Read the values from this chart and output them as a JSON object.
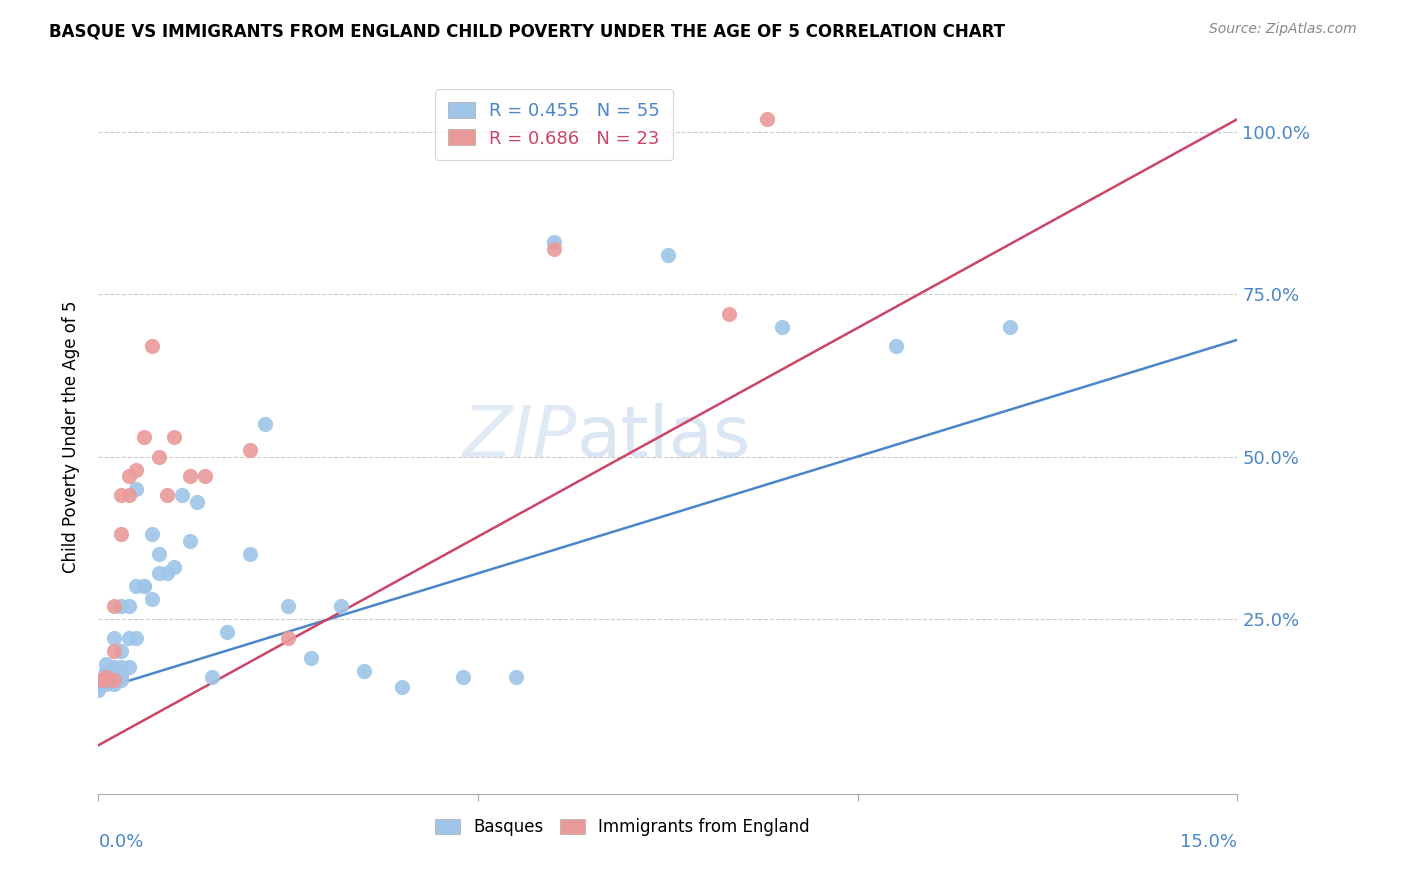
{
  "title": "BASQUE VS IMMIGRANTS FROM ENGLAND CHILD POVERTY UNDER THE AGE OF 5 CORRELATION CHART",
  "source": "Source: ZipAtlas.com",
  "ylabel": "Child Poverty Under the Age of 5",
  "legend_basque": "R = 0.455   N = 55",
  "legend_immigrant": "R = 0.686   N = 23",
  "legend_label1": "Basques",
  "legend_label2": "Immigrants from England",
  "watermark_zip": "ZIP",
  "watermark_atlas": "atlas",
  "blue_color": "#9fc5e8",
  "pink_color": "#ea9999",
  "blue_line_color": "#4a86c8",
  "pink_line_color": "#cc4466",
  "xlim": [
    0.0,
    0.15
  ],
  "ylim": [
    -0.02,
    1.08
  ],
  "basque_x": [
    0.0,
    0.0,
    0.001,
    0.001,
    0.001,
    0.001,
    0.001,
    0.001,
    0.001,
    0.002,
    0.002,
    0.002,
    0.002,
    0.002,
    0.002,
    0.002,
    0.003,
    0.003,
    0.003,
    0.003,
    0.003,
    0.003,
    0.004,
    0.004,
    0.004,
    0.005,
    0.005,
    0.005,
    0.006,
    0.006,
    0.007,
    0.007,
    0.008,
    0.008,
    0.009,
    0.01,
    0.011,
    0.012,
    0.013,
    0.015,
    0.017,
    0.02,
    0.022,
    0.025,
    0.028,
    0.032,
    0.035,
    0.04,
    0.048,
    0.055,
    0.06,
    0.075,
    0.09,
    0.105,
    0.12
  ],
  "basque_y": [
    0.14,
    0.145,
    0.15,
    0.155,
    0.155,
    0.16,
    0.165,
    0.17,
    0.18,
    0.15,
    0.155,
    0.16,
    0.165,
    0.17,
    0.175,
    0.22,
    0.155,
    0.16,
    0.165,
    0.175,
    0.2,
    0.27,
    0.175,
    0.22,
    0.27,
    0.22,
    0.3,
    0.45,
    0.3,
    0.3,
    0.28,
    0.38,
    0.32,
    0.35,
    0.32,
    0.33,
    0.44,
    0.37,
    0.43,
    0.16,
    0.23,
    0.35,
    0.55,
    0.27,
    0.19,
    0.27,
    0.17,
    0.145,
    0.16,
    0.16,
    0.83,
    0.81,
    0.7,
    0.67,
    0.7
  ],
  "immigrant_x": [
    0.0,
    0.001,
    0.001,
    0.002,
    0.002,
    0.002,
    0.003,
    0.003,
    0.004,
    0.004,
    0.005,
    0.006,
    0.007,
    0.008,
    0.009,
    0.01,
    0.012,
    0.014,
    0.02,
    0.025,
    0.06,
    0.083,
    0.088
  ],
  "immigrant_y": [
    0.155,
    0.155,
    0.16,
    0.155,
    0.2,
    0.27,
    0.38,
    0.44,
    0.44,
    0.47,
    0.48,
    0.53,
    0.67,
    0.5,
    0.44,
    0.53,
    0.47,
    0.47,
    0.51,
    0.22,
    0.82,
    0.72,
    1.02
  ],
  "blue_trendline_x": [
    0.0,
    0.15
  ],
  "blue_trendline_y": [
    0.14,
    0.68
  ],
  "pink_trendline_x": [
    0.0,
    0.15
  ],
  "pink_trendline_y": [
    0.055,
    1.02
  ]
}
